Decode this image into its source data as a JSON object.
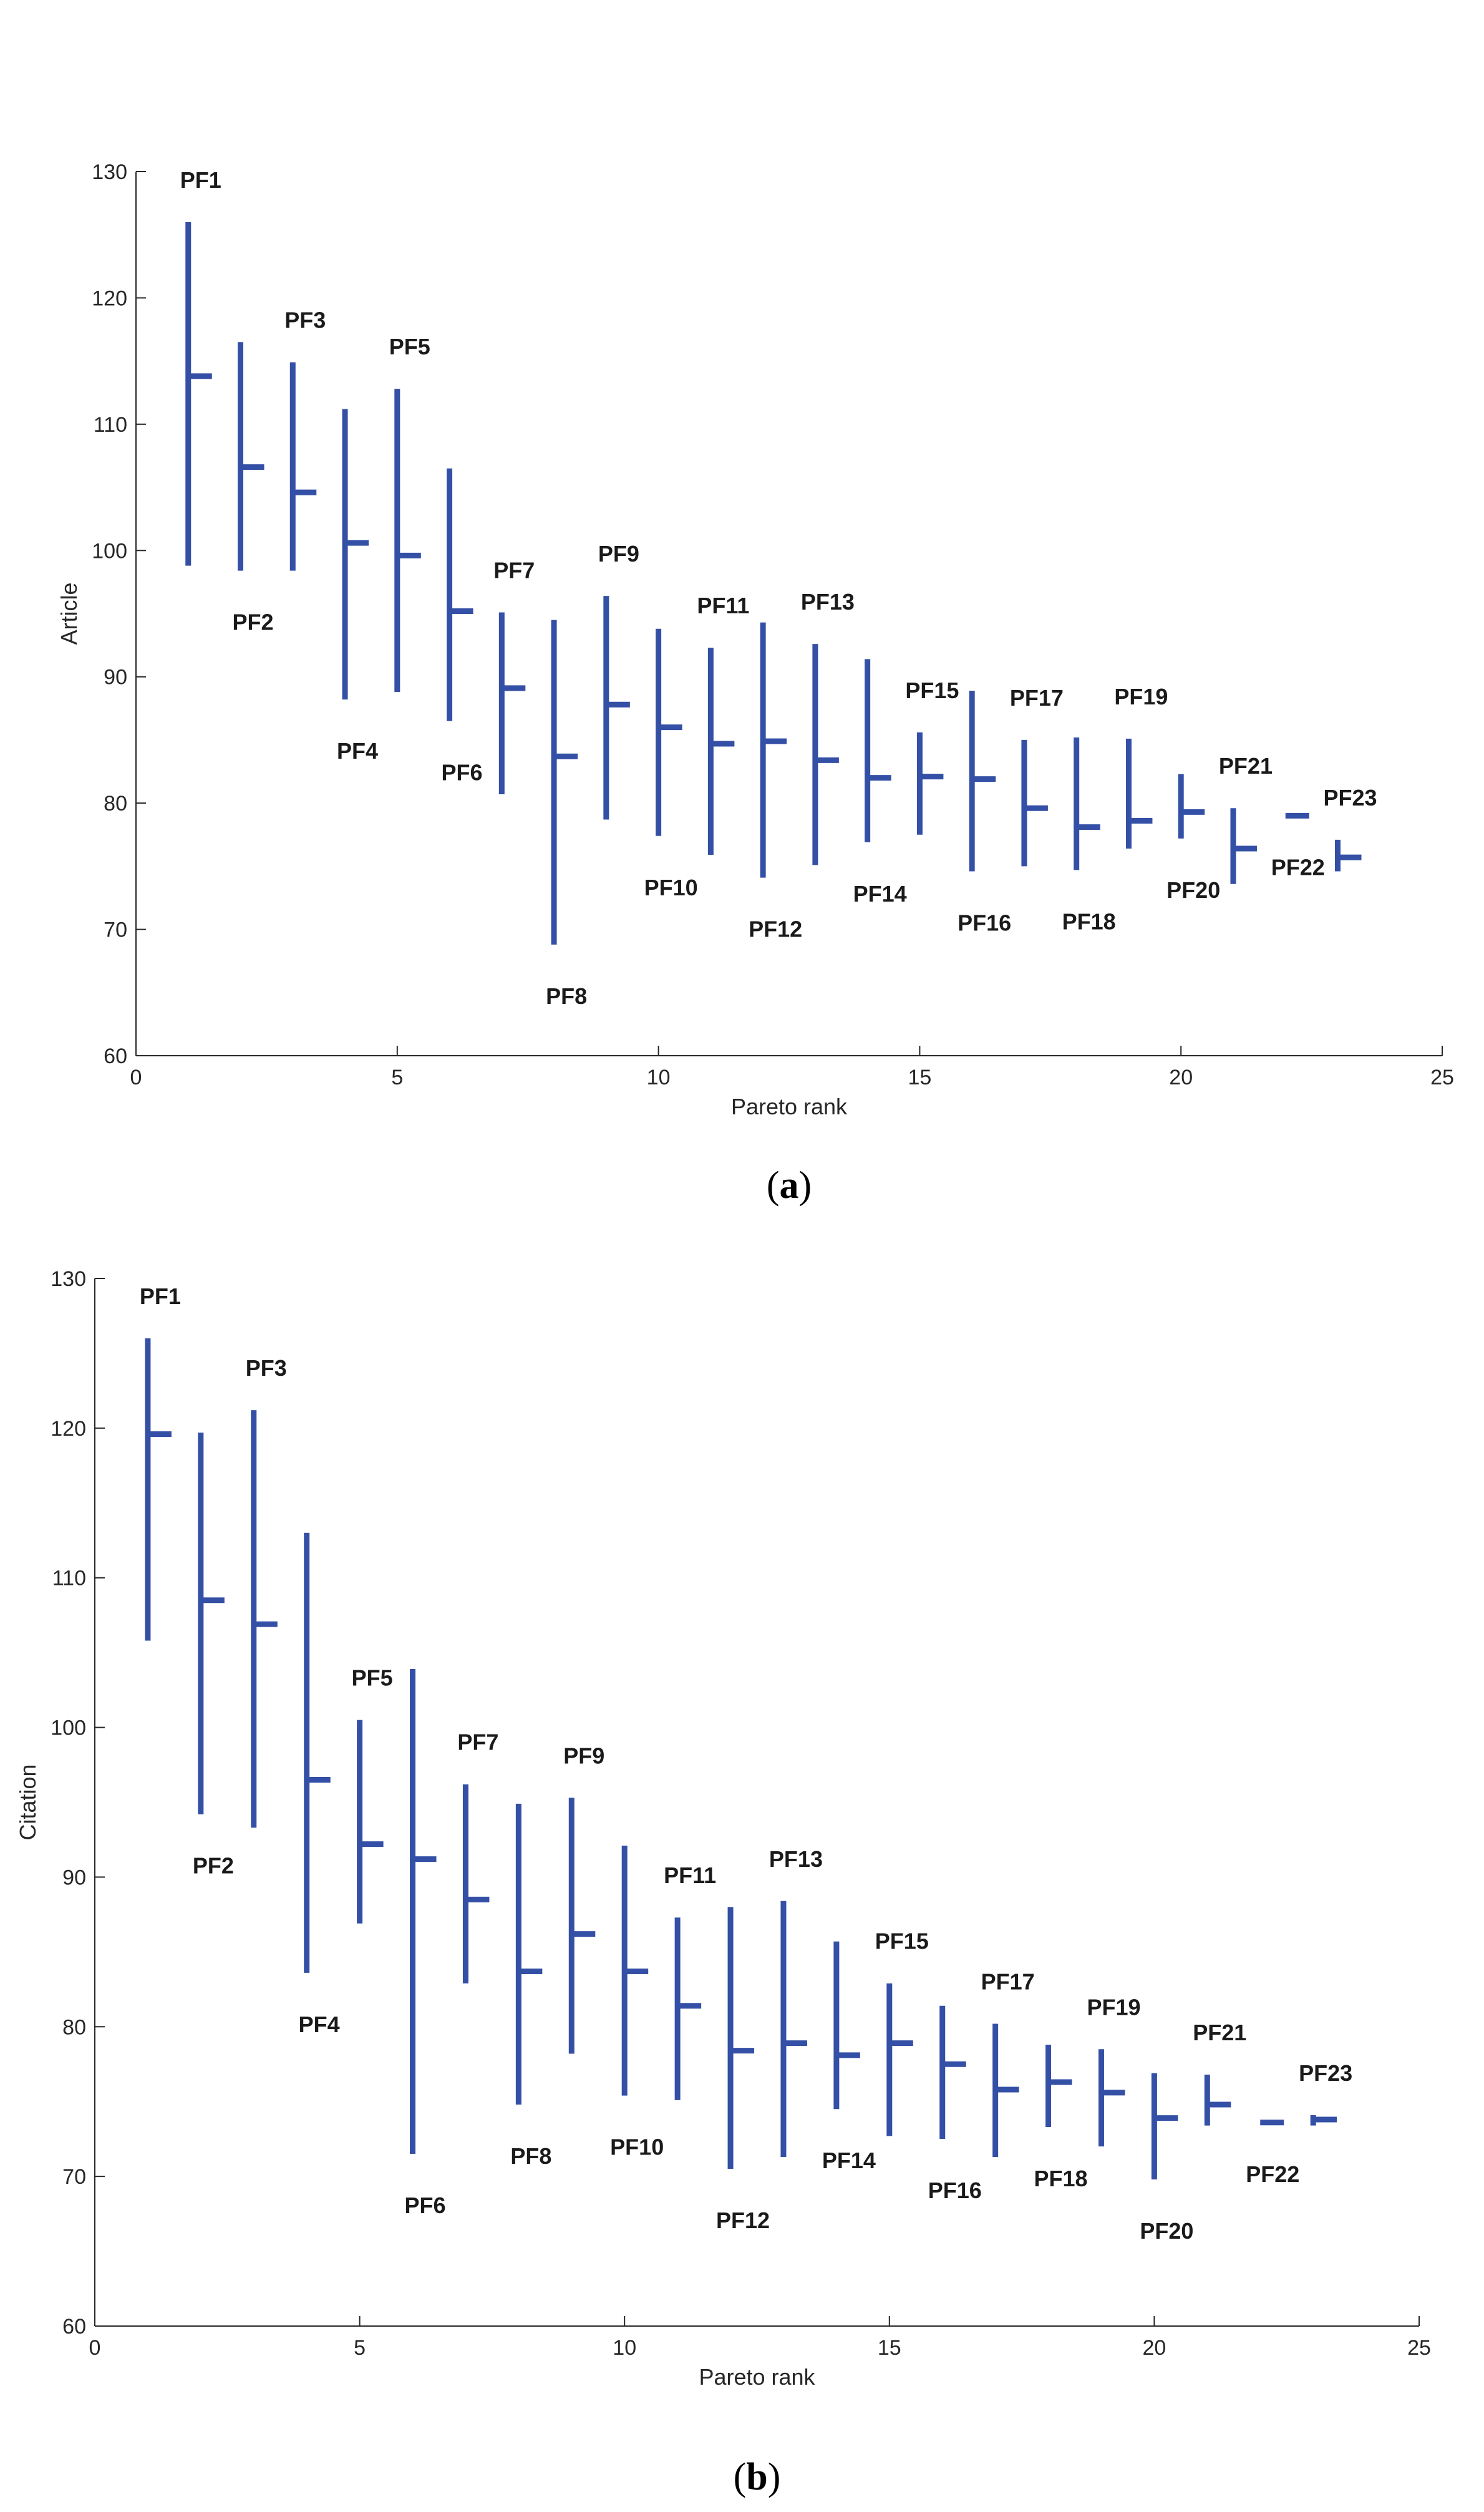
{
  "chart_data": [
    {
      "type": "range",
      "id": "a",
      "caption": {
        "open": "(",
        "letter": "a",
        "close": ")"
      },
      "xlabel": "Pareto rank",
      "ylabel": "Article",
      "xlim": [
        0,
        25
      ],
      "ylim": [
        60,
        130
      ],
      "xticks": [
        0,
        5,
        10,
        15,
        20,
        25
      ],
      "yticks": [
        60,
        70,
        80,
        90,
        100,
        110,
        120,
        130
      ],
      "color": "#3450A6",
      "series": [
        {
          "label": "PF1",
          "x": 1,
          "low": 98.8,
          "high": 126.0,
          "mid": 113.8,
          "label_pos": "above"
        },
        {
          "label": "PF2",
          "x": 2,
          "low": 98.4,
          "high": 116.5,
          "mid": 106.6,
          "label_pos": "below"
        },
        {
          "label": "PF3",
          "x": 3,
          "low": 98.4,
          "high": 114.9,
          "mid": 104.6,
          "label_pos": "above"
        },
        {
          "label": "PF4",
          "x": 4,
          "low": 88.2,
          "high": 111.2,
          "mid": 100.6,
          "label_pos": "below"
        },
        {
          "label": "PF5",
          "x": 5,
          "low": 88.8,
          "high": 112.8,
          "mid": 99.6,
          "label_pos": "above"
        },
        {
          "label": "PF6",
          "x": 6,
          "low": 86.5,
          "high": 106.5,
          "mid": 95.2,
          "label_pos": "below"
        },
        {
          "label": "PF7",
          "x": 7,
          "low": 80.7,
          "high": 95.1,
          "mid": 89.1,
          "label_pos": "above"
        },
        {
          "label": "PF8",
          "x": 8,
          "low": 68.8,
          "high": 94.5,
          "mid": 83.7,
          "label_pos": "below"
        },
        {
          "label": "PF9",
          "x": 9,
          "low": 78.7,
          "high": 96.4,
          "mid": 87.8,
          "label_pos": "above"
        },
        {
          "label": "PF10",
          "x": 10,
          "low": 77.4,
          "high": 93.8,
          "mid": 86.0,
          "label_pos": "below"
        },
        {
          "label": "PF11",
          "x": 11,
          "low": 75.9,
          "high": 92.3,
          "mid": 84.7,
          "label_pos": "above"
        },
        {
          "label": "PF12",
          "x": 12,
          "low": 74.1,
          "high": 94.3,
          "mid": 84.9,
          "label_pos": "below"
        },
        {
          "label": "PF13",
          "x": 13,
          "low": 75.1,
          "high": 92.6,
          "mid": 83.4,
          "label_pos": "above"
        },
        {
          "label": "PF14",
          "x": 14,
          "low": 76.9,
          "high": 91.4,
          "mid": 82.0,
          "label_pos": "below"
        },
        {
          "label": "PF15",
          "x": 15,
          "low": 77.5,
          "high": 85.6,
          "mid": 82.1,
          "label_pos": "above"
        },
        {
          "label": "PF16",
          "x": 16,
          "low": 74.6,
          "high": 88.9,
          "mid": 81.9,
          "label_pos": "below"
        },
        {
          "label": "PF17",
          "x": 17,
          "low": 75.0,
          "high": 85.0,
          "mid": 79.6,
          "label_pos": "above"
        },
        {
          "label": "PF18",
          "x": 18,
          "low": 74.7,
          "high": 85.2,
          "mid": 78.1,
          "label_pos": "below"
        },
        {
          "label": "PF19",
          "x": 19,
          "low": 76.4,
          "high": 85.1,
          "mid": 78.6,
          "label_pos": "above"
        },
        {
          "label": "PF20",
          "x": 20,
          "low": 77.2,
          "high": 82.3,
          "mid": 79.3,
          "label_pos": "below"
        },
        {
          "label": "PF21",
          "x": 21,
          "low": 73.6,
          "high": 79.6,
          "mid": 76.4,
          "label_pos": "above"
        },
        {
          "label": "PF22",
          "x": 22,
          "low": 79.0,
          "high": 79.0,
          "mid": 79.0,
          "label_pos": "below"
        },
        {
          "label": "PF23",
          "x": 23,
          "low": 74.6,
          "high": 77.1,
          "mid": 75.7,
          "label_pos": "above"
        }
      ]
    },
    {
      "type": "range",
      "id": "b",
      "caption": {
        "open": "(",
        "letter": "b",
        "close": ")"
      },
      "xlabel": "Pareto rank",
      "ylabel": "Citation",
      "xlim": [
        0,
        25
      ],
      "ylim": [
        60,
        130
      ],
      "xticks": [
        0,
        5,
        10,
        15,
        20,
        25
      ],
      "yticks": [
        60,
        70,
        80,
        90,
        100,
        110,
        120,
        130
      ],
      "color": "#3450A6",
      "series": [
        {
          "label": "PF1",
          "x": 1,
          "low": 105.8,
          "high": 126.0,
          "mid": 119.6,
          "label_pos": "above"
        },
        {
          "label": "PF2",
          "x": 2,
          "low": 94.2,
          "high": 119.7,
          "mid": 108.5,
          "label_pos": "below"
        },
        {
          "label": "PF3",
          "x": 3,
          "low": 93.3,
          "high": 121.2,
          "mid": 106.9,
          "label_pos": "above"
        },
        {
          "label": "PF4",
          "x": 4,
          "low": 83.6,
          "high": 113.0,
          "mid": 96.5,
          "label_pos": "below"
        },
        {
          "label": "PF5",
          "x": 5,
          "low": 86.9,
          "high": 100.5,
          "mid": 92.2,
          "label_pos": "above"
        },
        {
          "label": "PF6",
          "x": 6,
          "low": 71.5,
          "high": 103.9,
          "mid": 91.2,
          "label_pos": "below"
        },
        {
          "label": "PF7",
          "x": 7,
          "low": 82.9,
          "high": 96.2,
          "mid": 88.5,
          "label_pos": "above"
        },
        {
          "label": "PF8",
          "x": 8,
          "low": 74.8,
          "high": 94.9,
          "mid": 83.7,
          "label_pos": "below"
        },
        {
          "label": "PF9",
          "x": 9,
          "low": 78.2,
          "high": 95.3,
          "mid": 86.2,
          "label_pos": "above"
        },
        {
          "label": "PF10",
          "x": 10,
          "low": 75.4,
          "high": 92.1,
          "mid": 83.7,
          "label_pos": "below"
        },
        {
          "label": "PF11",
          "x": 11,
          "low": 75.1,
          "high": 87.3,
          "mid": 81.4,
          "label_pos": "above"
        },
        {
          "label": "PF12",
          "x": 12,
          "low": 70.5,
          "high": 88.0,
          "mid": 78.4,
          "label_pos": "below"
        },
        {
          "label": "PF13",
          "x": 13,
          "low": 71.3,
          "high": 88.4,
          "mid": 78.9,
          "label_pos": "above"
        },
        {
          "label": "PF14",
          "x": 14,
          "low": 74.5,
          "high": 85.7,
          "mid": 78.1,
          "label_pos": "below"
        },
        {
          "label": "PF15",
          "x": 15,
          "low": 72.7,
          "high": 82.9,
          "mid": 78.9,
          "label_pos": "above"
        },
        {
          "label": "PF16",
          "x": 16,
          "low": 72.5,
          "high": 81.4,
          "mid": 77.5,
          "label_pos": "below"
        },
        {
          "label": "PF17",
          "x": 17,
          "low": 71.3,
          "high": 80.2,
          "mid": 75.8,
          "label_pos": "above"
        },
        {
          "label": "PF18",
          "x": 18,
          "low": 73.3,
          "high": 78.8,
          "mid": 76.3,
          "label_pos": "below"
        },
        {
          "label": "PF19",
          "x": 19,
          "low": 72.0,
          "high": 78.5,
          "mid": 75.6,
          "label_pos": "above"
        },
        {
          "label": "PF20",
          "x": 20,
          "low": 69.8,
          "high": 76.9,
          "mid": 73.9,
          "label_pos": "below"
        },
        {
          "label": "PF21",
          "x": 21,
          "low": 73.4,
          "high": 76.8,
          "mid": 74.8,
          "label_pos": "above"
        },
        {
          "label": "PF22",
          "x": 22,
          "low": 73.6,
          "high": 73.6,
          "mid": 73.6,
          "label_pos": "below"
        },
        {
          "label": "PF23",
          "x": 23,
          "low": 73.4,
          "high": 74.1,
          "mid": 73.8,
          "label_pos": "above"
        }
      ]
    }
  ]
}
